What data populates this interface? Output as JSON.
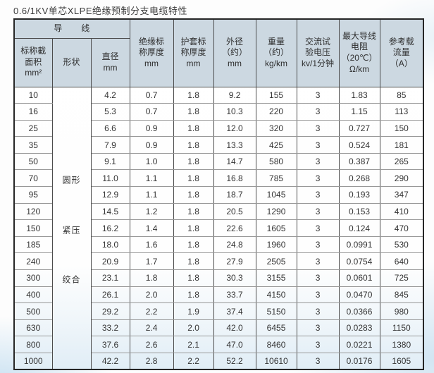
{
  "title": "0.6/1KV单芯XLPE绝缘预制分支电缆特性",
  "table": {
    "headers": {
      "conductor_group": "导　　线",
      "area": "标称截\n面积\nmm²",
      "shape": "形状",
      "diameter": "直径\nmm",
      "insulation": "绝缘标\n称厚度\nmm",
      "sheath": "护套标\n称厚度\nmm",
      "outer_diameter": "外径\n（约）\nmm",
      "weight": "重量\n（约）\nkg/km",
      "test_voltage": "交流试\n验电压\nkv/1分钟",
      "max_resistance": "最大导线\n电阻\n（20℃）\nΩ/km",
      "ampacity": "参考载\n流量\n（A）"
    },
    "shape_labels": [
      "圆形",
      "紧压",
      "绞合"
    ],
    "columns_order": [
      "area",
      "diameter",
      "insulation",
      "sheath",
      "outer_diameter",
      "weight",
      "test_voltage",
      "max_resistance",
      "ampacity"
    ],
    "rows": [
      [
        "10",
        "4.2",
        "0.7",
        "1.8",
        "9.2",
        "155",
        "3",
        "1.83",
        "85"
      ],
      [
        "16",
        "5.3",
        "0.7",
        "1.8",
        "10.3",
        "220",
        "3",
        "1.15",
        "113"
      ],
      [
        "25",
        "6.6",
        "0.9",
        "1.8",
        "12.0",
        "320",
        "3",
        "0.727",
        "150"
      ],
      [
        "35",
        "7.9",
        "0.9",
        "1.8",
        "13.3",
        "425",
        "3",
        "0.524",
        "181"
      ],
      [
        "50",
        "9.1",
        "1.0",
        "1.8",
        "14.7",
        "580",
        "3",
        "0.387",
        "265"
      ],
      [
        "70",
        "11.0",
        "1.1",
        "1.8",
        "16.8",
        "785",
        "3",
        "0.268",
        "290"
      ],
      [
        "95",
        "12.9",
        "1.1",
        "1.8",
        "18.7",
        "1045",
        "3",
        "0.193",
        "347"
      ],
      [
        "120",
        "14.5",
        "1.2",
        "1.8",
        "20.5",
        "1290",
        "3",
        "0.153",
        "410"
      ],
      [
        "150",
        "16.2",
        "1.4",
        "1.8",
        "22.6",
        "1605",
        "3",
        "0.124",
        "470"
      ],
      [
        "185",
        "18.0",
        "1.6",
        "1.8",
        "24.8",
        "1960",
        "3",
        "0.0991",
        "530"
      ],
      [
        "240",
        "20.9",
        "1.7",
        "1.8",
        "27.9",
        "2505",
        "3",
        "0.0754",
        "640"
      ],
      [
        "300",
        "23.1",
        "1.8",
        "1.8",
        "30.3",
        "3155",
        "3",
        "0.0601",
        "725"
      ],
      [
        "400",
        "26.1",
        "2.0",
        "1.8",
        "33.7",
        "4150",
        "3",
        "0.0470",
        "845"
      ],
      [
        "500",
        "29.2",
        "2.2",
        "1.9",
        "37.4",
        "5150",
        "3",
        "0.0366",
        "980"
      ],
      [
        "630",
        "33.2",
        "2.4",
        "2.0",
        "42.0",
        "6455",
        "3",
        "0.0283",
        "1150"
      ],
      [
        "800",
        "37.6",
        "2.6",
        "2.1",
        "47.0",
        "8460",
        "3",
        "0.0221",
        "1380"
      ],
      [
        "1000",
        "42.2",
        "2.8",
        "2.2",
        "52.2",
        "10610",
        "3",
        "0.0176",
        "1605"
      ]
    ]
  }
}
